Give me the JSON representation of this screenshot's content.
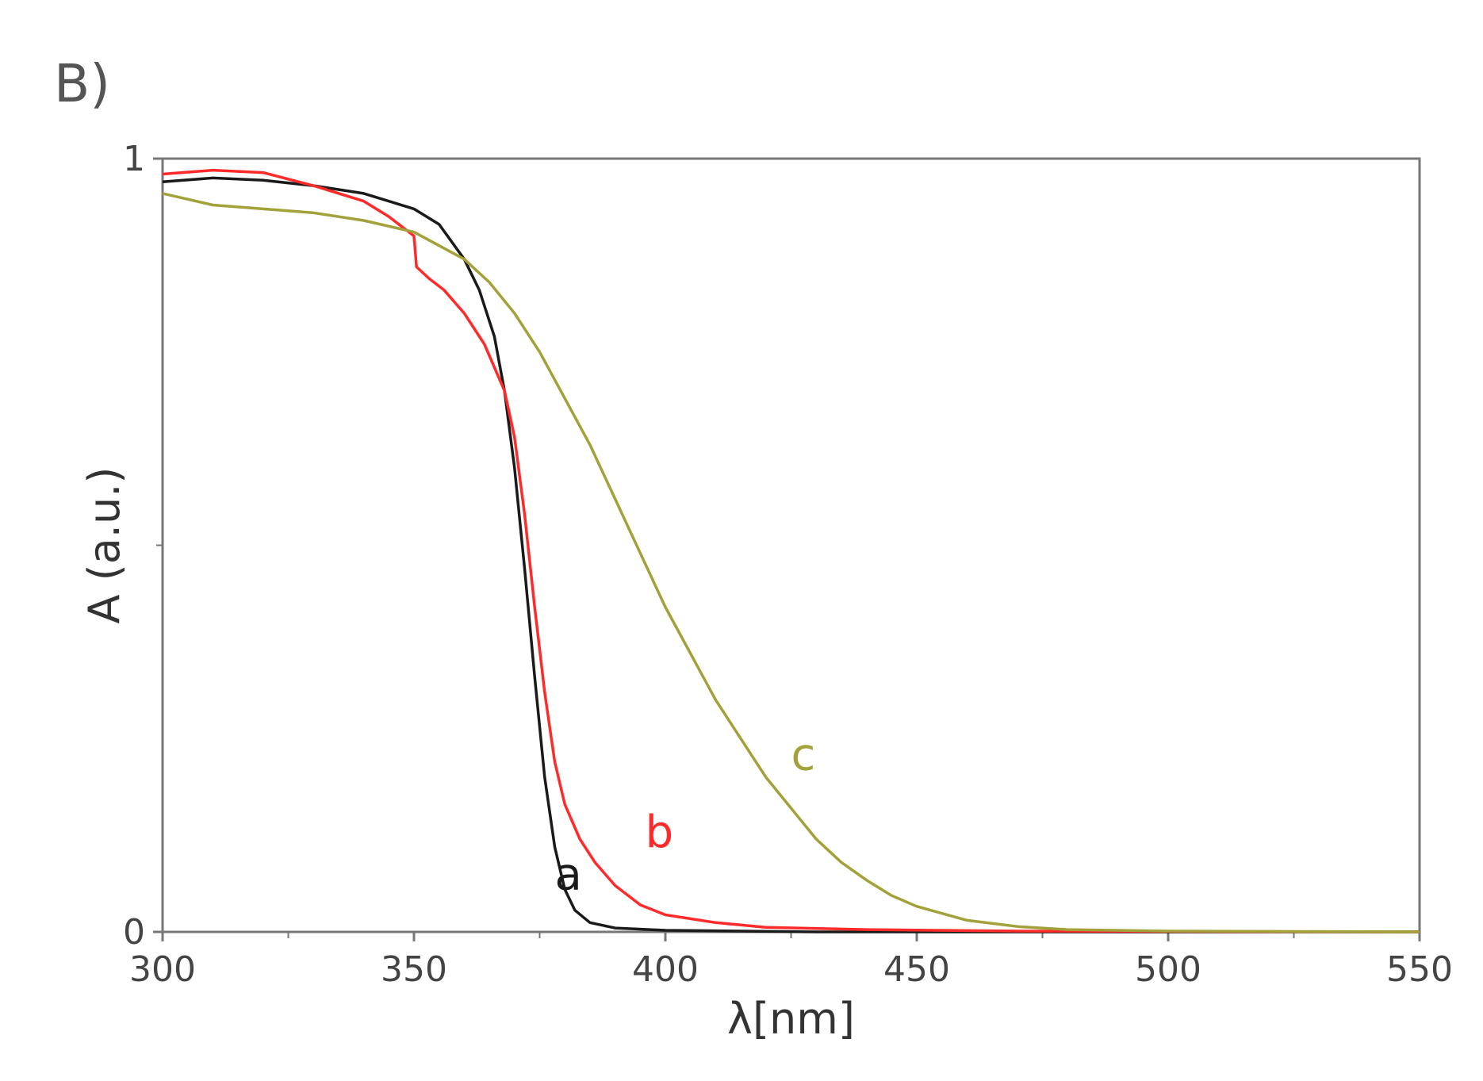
{
  "panel_label": "B)",
  "chart_data": {
    "type": "line",
    "xlabel": "λ[nm]",
    "ylabel": "A (a.u.)",
    "xlim": [
      300,
      550
    ],
    "ylim": [
      0,
      1
    ],
    "x_ticks": [
      300,
      350,
      400,
      450,
      500,
      550
    ],
    "y_ticks": [
      0,
      1
    ],
    "grid": false,
    "legend": "none (curves labelled inline)",
    "colors": {
      "a": "#1a1a1a",
      "b": "#ff2a2a",
      "c": "#a3a13a",
      "axis": "#777777"
    },
    "series": [
      {
        "name": "a",
        "label_pos": [
          378,
          0.055
        ],
        "points": [
          [
            300,
            0.97
          ],
          [
            310,
            0.975
          ],
          [
            320,
            0.972
          ],
          [
            330,
            0.965
          ],
          [
            340,
            0.955
          ],
          [
            350,
            0.935
          ],
          [
            355,
            0.915
          ],
          [
            360,
            0.87
          ],
          [
            363,
            0.83
          ],
          [
            366,
            0.77
          ],
          [
            368,
            0.7
          ],
          [
            370,
            0.6
          ],
          [
            372,
            0.47
          ],
          [
            374,
            0.33
          ],
          [
            376,
            0.2
          ],
          [
            378,
            0.11
          ],
          [
            380,
            0.055
          ],
          [
            382,
            0.028
          ],
          [
            385,
            0.012
          ],
          [
            390,
            0.005
          ],
          [
            400,
            0.002
          ],
          [
            430,
            0.0
          ],
          [
            550,
            0.0
          ]
        ]
      },
      {
        "name": "b",
        "label_pos": [
          396,
          0.11
        ],
        "points": [
          [
            300,
            0.98
          ],
          [
            310,
            0.985
          ],
          [
            320,
            0.982
          ],
          [
            330,
            0.965
          ],
          [
            340,
            0.945
          ],
          [
            345,
            0.925
          ],
          [
            350,
            0.9
          ],
          [
            350.5,
            0.86
          ],
          [
            353,
            0.845
          ],
          [
            356,
            0.83
          ],
          [
            360,
            0.8
          ],
          [
            364,
            0.76
          ],
          [
            368,
            0.7
          ],
          [
            370,
            0.64
          ],
          [
            372,
            0.54
          ],
          [
            374,
            0.42
          ],
          [
            376,
            0.31
          ],
          [
            378,
            0.22
          ],
          [
            380,
            0.165
          ],
          [
            383,
            0.12
          ],
          [
            386,
            0.09
          ],
          [
            390,
            0.06
          ],
          [
            395,
            0.035
          ],
          [
            400,
            0.022
          ],
          [
            410,
            0.012
          ],
          [
            420,
            0.006
          ],
          [
            440,
            0.003
          ],
          [
            470,
            0.001
          ],
          [
            550,
            0.0
          ]
        ]
      },
      {
        "name": "c",
        "label_pos": [
          425,
          0.21
        ],
        "points": [
          [
            300,
            0.955
          ],
          [
            310,
            0.94
          ],
          [
            320,
            0.935
          ],
          [
            330,
            0.93
          ],
          [
            340,
            0.92
          ],
          [
            350,
            0.905
          ],
          [
            360,
            0.87
          ],
          [
            365,
            0.84
          ],
          [
            370,
            0.8
          ],
          [
            375,
            0.75
          ],
          [
            380,
            0.69
          ],
          [
            385,
            0.63
          ],
          [
            390,
            0.56
          ],
          [
            395,
            0.49
          ],
          [
            400,
            0.42
          ],
          [
            405,
            0.36
          ],
          [
            410,
            0.3
          ],
          [
            415,
            0.25
          ],
          [
            420,
            0.2
          ],
          [
            425,
            0.16
          ],
          [
            430,
            0.12
          ],
          [
            435,
            0.09
          ],
          [
            440,
            0.067
          ],
          [
            445,
            0.047
          ],
          [
            450,
            0.033
          ],
          [
            460,
            0.015
          ],
          [
            470,
            0.007
          ],
          [
            480,
            0.003
          ],
          [
            500,
            0.001
          ],
          [
            550,
            0.0
          ]
        ]
      }
    ]
  }
}
